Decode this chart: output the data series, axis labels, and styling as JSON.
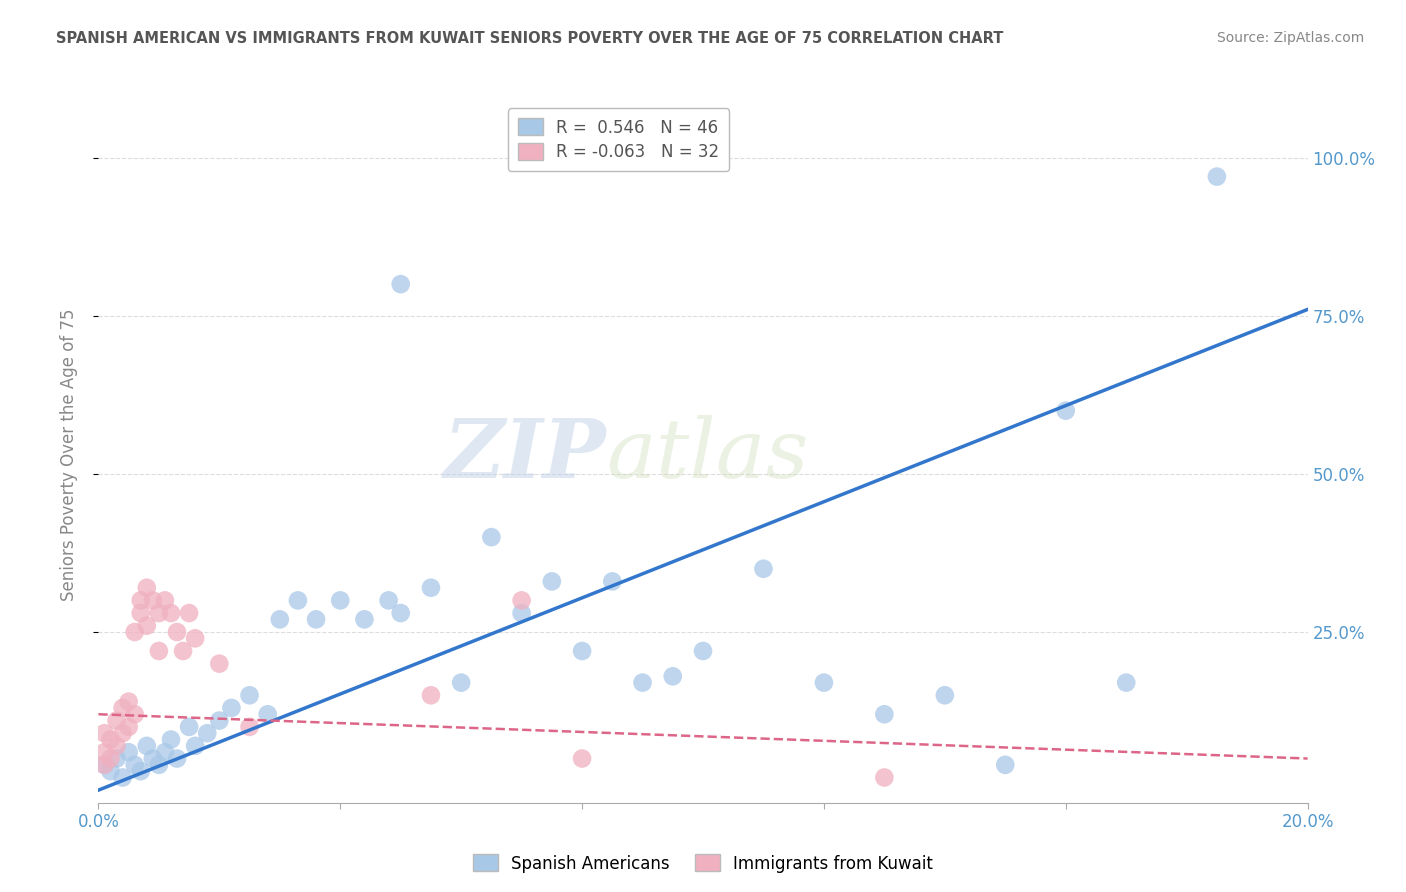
{
  "title": "SPANISH AMERICAN VS IMMIGRANTS FROM KUWAIT SENIORS POVERTY OVER THE AGE OF 75 CORRELATION CHART",
  "source_text": "Source: ZipAtlas.com",
  "ylabel": "Seniors Poverty Over the Age of 75",
  "xlim": [
    0.0,
    0.2
  ],
  "ylim": [
    -0.02,
    1.08
  ],
  "ytick_positions": [
    0.25,
    0.5,
    0.75,
    1.0
  ],
  "yticklabels": [
    "25.0%",
    "50.0%",
    "75.0%",
    "100.0%"
  ],
  "blue_R": 0.546,
  "blue_N": 46,
  "pink_R": -0.063,
  "pink_N": 32,
  "blue_color": "#a8c8e8",
  "pink_color": "#f0b0c0",
  "blue_line_color": "#3377cc",
  "pink_line_color": "#dd6688",
  "legend_blue_label": "Spanish Americans",
  "legend_pink_label": "Immigrants from Kuwait",
  "watermark_zip": "ZIP",
  "watermark_atlas": "atlas",
  "background_color": "#ffffff",
  "grid_color": "#dddddd",
  "blue_scatter_x": [
    0.001,
    0.002,
    0.003,
    0.004,
    0.005,
    0.006,
    0.007,
    0.008,
    0.009,
    0.01,
    0.011,
    0.012,
    0.013,
    0.015,
    0.016,
    0.018,
    0.02,
    0.022,
    0.025,
    0.028,
    0.03,
    0.033,
    0.036,
    0.04,
    0.044,
    0.048,
    0.05,
    0.055,
    0.06,
    0.065,
    0.07,
    0.075,
    0.08,
    0.085,
    0.09,
    0.095,
    0.1,
    0.11,
    0.12,
    0.13,
    0.14,
    0.15,
    0.16,
    0.17,
    0.185,
    0.05
  ],
  "blue_scatter_y": [
    0.04,
    0.03,
    0.05,
    0.02,
    0.06,
    0.04,
    0.03,
    0.07,
    0.05,
    0.04,
    0.06,
    0.08,
    0.05,
    0.1,
    0.07,
    0.09,
    0.11,
    0.13,
    0.15,
    0.12,
    0.27,
    0.3,
    0.27,
    0.3,
    0.27,
    0.3,
    0.28,
    0.32,
    0.17,
    0.4,
    0.28,
    0.33,
    0.22,
    0.33,
    0.17,
    0.18,
    0.22,
    0.35,
    0.17,
    0.12,
    0.15,
    0.04,
    0.6,
    0.17,
    0.97,
    0.8
  ],
  "pink_scatter_x": [
    0.001,
    0.001,
    0.001,
    0.002,
    0.002,
    0.003,
    0.003,
    0.004,
    0.004,
    0.005,
    0.005,
    0.006,
    0.006,
    0.007,
    0.007,
    0.008,
    0.008,
    0.009,
    0.01,
    0.01,
    0.011,
    0.012,
    0.013,
    0.014,
    0.015,
    0.016,
    0.02,
    0.025,
    0.055,
    0.07,
    0.08,
    0.13
  ],
  "pink_scatter_y": [
    0.04,
    0.06,
    0.09,
    0.05,
    0.08,
    0.07,
    0.11,
    0.09,
    0.13,
    0.1,
    0.14,
    0.12,
    0.25,
    0.3,
    0.28,
    0.26,
    0.32,
    0.3,
    0.28,
    0.22,
    0.3,
    0.28,
    0.25,
    0.22,
    0.28,
    0.24,
    0.2,
    0.1,
    0.15,
    0.3,
    0.05,
    0.02
  ],
  "blue_trendline_x": [
    0.0,
    0.2
  ],
  "blue_trendline_y": [
    0.0,
    0.76
  ],
  "pink_trendline_x": [
    0.0,
    0.2
  ],
  "pink_trendline_y": [
    0.12,
    0.05
  ]
}
